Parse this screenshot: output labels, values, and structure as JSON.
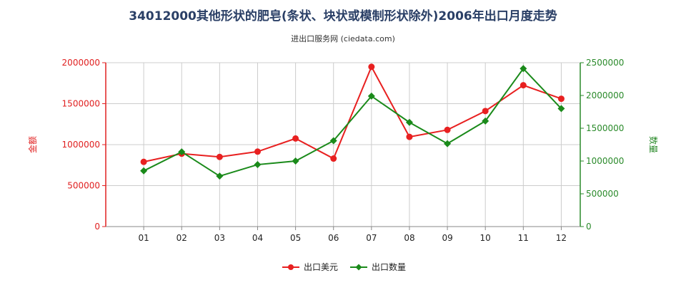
{
  "title": "34012000其他形状的肥皂(条状、块状或模制形状除外)2006年出口月度走势",
  "subtitle": "进出口服务网 (ciedata.com)",
  "chart_data": {
    "type": "line",
    "categories": [
      "01",
      "02",
      "03",
      "04",
      "05",
      "06",
      "07",
      "08",
      "09",
      "10",
      "11",
      "12"
    ],
    "left_axis": {
      "label": "金额",
      "ylim": [
        0,
        2000000
      ],
      "ticks": [
        "0",
        "500000",
        "1000000",
        "1500000",
        "2000000"
      ],
      "color": "#e02020"
    },
    "right_axis": {
      "label": "数量",
      "ylim": [
        0,
        2500000
      ],
      "ticks": [
        "0",
        "500000",
        "1000000",
        "1500000",
        "2000000",
        "2500000"
      ],
      "color": "#2a8a2a"
    },
    "series": [
      {
        "name": "出口美元",
        "axis": "left",
        "color": "#e82020",
        "marker": "circle",
        "values": [
          790000,
          890000,
          850000,
          915000,
          1075000,
          830000,
          1950000,
          1095000,
          1180000,
          1410000,
          1725000,
          1560000
        ]
      },
      {
        "name": "出口数量",
        "axis": "right",
        "color": "#1a8a1a",
        "marker": "diamond",
        "values": [
          850000,
          1140000,
          770000,
          945000,
          1000000,
          1310000,
          1990000,
          1590000,
          1265000,
          1610000,
          2410000,
          1800000
        ]
      }
    ],
    "grid": true,
    "legend": "bottom-center"
  }
}
